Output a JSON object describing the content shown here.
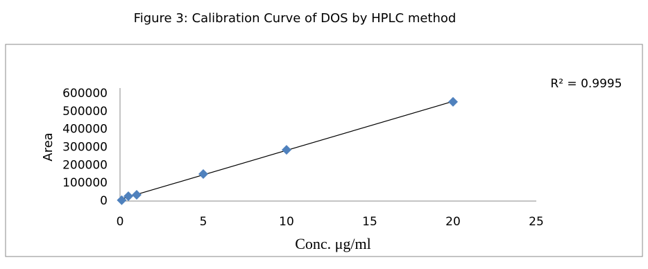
{
  "chart_data": {
    "type": "scatter",
    "title": "Figure 3: Calibration Curve of DOS by HPLC method",
    "x_label": "Conc. μg/ml",
    "y_label": "Area",
    "annotation": "R² = 0.9995",
    "series": [
      {
        "name": "Area",
        "color": "#4f81bd",
        "x": [
          0.1,
          0.5,
          1,
          5,
          10,
          20
        ],
        "values": [
          5000,
          27000,
          35000,
          151000,
          286000,
          554000
        ]
      }
    ],
    "trendline": "linear",
    "xlim": [
      0,
      25
    ],
    "xticks": [
      0,
      5,
      10,
      15,
      20,
      25
    ],
    "ylim": [
      0,
      600000
    ],
    "yticks": [
      0,
      100000,
      200000,
      300000,
      400000,
      500000,
      600000
    ],
    "grid": false
  }
}
